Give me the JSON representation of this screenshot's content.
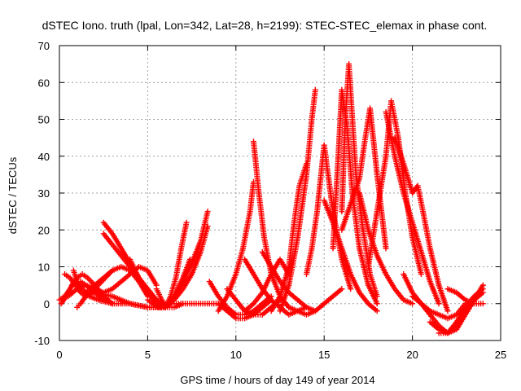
{
  "chart_data": {
    "type": "scatter",
    "title": "dSTEC Iono. truth (lpal, Lon=342, Lat=28, h=2199): STEC-STEC_elemax in phase cont.",
    "xlabel": "GPS time / hours of day 149 of year 2014",
    "ylabel": "dSTEC  / TECUs",
    "xlim": [
      0,
      25
    ],
    "ylim": [
      -10,
      70
    ],
    "xticks": [
      0,
      5,
      10,
      15,
      20,
      25
    ],
    "yticks": [
      -10,
      0,
      10,
      20,
      30,
      40,
      50,
      60,
      70
    ],
    "grid": true,
    "marker": "plus",
    "color": "#ff0000",
    "series": [
      {
        "x": [
          0.0,
          0.3,
          0.6,
          0.9,
          1.2,
          1.5,
          2.0,
          2.5,
          3.0
        ],
        "y": [
          1,
          2,
          4,
          6,
          6,
          5,
          3,
          1,
          0
        ]
      },
      {
        "x": [
          0.1,
          0.4,
          0.7,
          1.0,
          1.3,
          1.6,
          2.0,
          2.5,
          3.0
        ],
        "y": [
          0,
          2,
          5,
          7,
          8,
          7,
          5,
          2,
          0
        ]
      },
      {
        "x": [
          0.3,
          0.6,
          0.9,
          1.2,
          1.5,
          1.8,
          2.2,
          2.6,
          3.0
        ],
        "y": [
          8,
          7,
          5,
          3,
          2,
          3,
          5,
          7,
          9
        ]
      },
      {
        "x": [
          0.8,
          1.0,
          1.3,
          1.7,
          2.2,
          3.0,
          4.0,
          5.0,
          6.0
        ],
        "y": [
          9,
          6,
          4,
          2,
          1,
          0,
          0,
          -1,
          -1
        ]
      },
      {
        "x": [
          1.0,
          1.2,
          1.5,
          2.0,
          3.0,
          4.0,
          5.0,
          6.0
        ],
        "y": [
          -1,
          0,
          2,
          3,
          2,
          0,
          -1,
          -1
        ]
      },
      {
        "x": [
          0.5,
          1.0,
          1.5,
          2.0,
          2.5,
          3.0,
          3.5,
          4.0,
          4.5,
          5.0,
          5.5
        ],
        "y": [
          2,
          4,
          5,
          4,
          3,
          4,
          6,
          8,
          10,
          9,
          5
        ]
      },
      {
        "x": [
          2.5,
          3.0,
          3.5,
          4.0,
          4.5,
          5.0,
          5.5,
          6.0
        ],
        "y": [
          22,
          19,
          15,
          11,
          7,
          3,
          0,
          -1
        ]
      },
      {
        "x": [
          2.5,
          3.0,
          3.5,
          4.0,
          4.5,
          5.0,
          5.5,
          6.0
        ],
        "y": [
          19,
          16,
          13,
          10,
          7,
          4,
          1,
          -1
        ]
      },
      {
        "x": [
          1.5,
          2.0,
          2.5,
          3.0,
          3.5,
          4.0,
          4.5,
          5.0
        ],
        "y": [
          3,
          5,
          7,
          9,
          10,
          9,
          6,
          2
        ]
      },
      {
        "x": [
          4.0,
          4.3,
          4.6,
          5.0,
          5.5,
          6.0,
          6.5,
          7.0
        ],
        "y": [
          12,
          9,
          6,
          3,
          1,
          0,
          0,
          0
        ]
      },
      {
        "x": [
          5.0,
          5.3,
          5.6,
          6.0,
          6.3,
          6.6,
          6.9,
          7.2
        ],
        "y": [
          1,
          0,
          -1,
          -1,
          2,
          7,
          15,
          22
        ]
      },
      {
        "x": [
          5.5,
          5.8,
          6.0,
          6.3,
          6.6,
          7.0,
          7.4
        ],
        "y": [
          4,
          1,
          -1,
          0,
          3,
          7,
          12
        ]
      },
      {
        "x": [
          6.0,
          6.5,
          7.0,
          7.5,
          8.0,
          8.4
        ],
        "y": [
          -1,
          2,
          6,
          11,
          17,
          25
        ]
      },
      {
        "x": [
          6.0,
          6.5,
          7.0,
          7.5,
          8.0,
          8.4
        ],
        "y": [
          -1,
          1,
          4,
          8,
          14,
          21
        ]
      },
      {
        "x": [
          6.0,
          6.5,
          7.0,
          7.5,
          8.0,
          8.5,
          9.0
        ],
        "y": [
          -1,
          -1,
          0,
          0,
          0,
          0,
          0
        ]
      },
      {
        "x": [
          8.5,
          9.0,
          9.5,
          10.0,
          10.5,
          11.0,
          11.5,
          12.0
        ],
        "y": [
          6,
          2,
          -1,
          -3,
          -3,
          -2,
          0,
          2
        ]
      },
      {
        "x": [
          9.0,
          9.5,
          10.0,
          10.5,
          11.0,
          11.5,
          12.0
        ],
        "y": [
          0,
          -2,
          -4,
          -4,
          -3,
          -1,
          1
        ]
      },
      {
        "x": [
          9.5,
          10.0,
          10.5,
          11.0,
          11.5,
          12.0,
          12.5
        ],
        "y": [
          4,
          1,
          -2,
          -3,
          -3,
          -1,
          1
        ]
      },
      {
        "x": [
          9.0,
          9.5,
          10.0,
          10.4,
          10.8,
          11.0
        ],
        "y": [
          -2,
          2,
          8,
          15,
          25,
          33
        ]
      },
      {
        "x": [
          10.5,
          11.0,
          11.5,
          12.0,
          12.5,
          13.0,
          13.5,
          14.0
        ],
        "y": [
          12,
          8,
          4,
          1,
          -1,
          -3,
          -2,
          -1
        ]
      },
      {
        "x": [
          10.5,
          11.0,
          11.5,
          12.0,
          12.5,
          13.0
        ],
        "y": [
          -2,
          0,
          3,
          8,
          12,
          8
        ]
      },
      {
        "x": [
          11.0,
          11.3,
          11.6,
          12.0,
          12.5,
          13.0
        ],
        "y": [
          44,
          30,
          18,
          8,
          2,
          -1
        ]
      },
      {
        "x": [
          11.5,
          12.0,
          12.5,
          13.0,
          13.5,
          14.0,
          14.5
        ],
        "y": [
          14,
          10,
          6,
          3,
          1,
          -1,
          -2
        ]
      },
      {
        "x": [
          12.0,
          12.5,
          13.0,
          13.3,
          13.6,
          14.0
        ],
        "y": [
          -2,
          2,
          10,
          22,
          32,
          38
        ]
      },
      {
        "x": [
          12.5,
          13.0,
          13.5,
          14.0,
          14.3,
          14.5
        ],
        "y": [
          -2,
          5,
          18,
          35,
          50,
          58
        ]
      },
      {
        "x": [
          13.0,
          13.5,
          14.0,
          14.5,
          15.0,
          15.5,
          16.0
        ],
        "y": [
          -1,
          -2,
          -3,
          -2,
          0,
          2,
          4
        ]
      },
      {
        "x": [
          14.0,
          14.3,
          14.6,
          15.0,
          15.5,
          16.0,
          16.5
        ],
        "y": [
          8,
          15,
          25,
          43,
          25,
          12,
          4
        ]
      },
      {
        "x": [
          15.0,
          15.5,
          16.0,
          16.5,
          17.0,
          17.5,
          18.0
        ],
        "y": [
          28,
          22,
          15,
          8,
          3,
          0,
          -2
        ]
      },
      {
        "x": [
          15.5,
          15.8,
          16.0,
          16.3,
          16.6,
          17.0,
          17.5,
          18.0
        ],
        "y": [
          15,
          40,
          58,
          48,
          30,
          15,
          5,
          0
        ]
      },
      {
        "x": [
          16.0,
          16.2,
          16.4,
          16.6,
          16.8,
          17.2,
          17.6,
          18.0
        ],
        "y": [
          25,
          50,
          65,
          50,
          35,
          20,
          8,
          2
        ]
      },
      {
        "x": [
          16.0,
          16.5,
          17.0,
          17.3,
          17.6,
          18.0,
          18.5
        ],
        "y": [
          20,
          27,
          34,
          44,
          53,
          35,
          15
        ]
      },
      {
        "x": [
          17.0,
          17.5,
          18.0,
          18.5,
          19.0,
          19.5,
          20.0
        ],
        "y": [
          30,
          20,
          13,
          8,
          4,
          1,
          0
        ]
      },
      {
        "x": [
          17.5,
          18.0,
          18.5,
          18.8,
          19.2,
          19.6,
          20.0,
          20.5
        ],
        "y": [
          10,
          25,
          40,
          55,
          45,
          30,
          18,
          8
        ]
      },
      {
        "x": [
          18.5,
          19.0,
          19.5,
          20.0,
          20.5,
          21.0,
          21.5
        ],
        "y": [
          52,
          40,
          30,
          22,
          14,
          6,
          0
        ]
      },
      {
        "x": [
          19.0,
          19.5,
          20.0,
          20.3,
          20.6,
          21.0,
          21.5,
          22.0
        ],
        "y": [
          45,
          38,
          30,
          32,
          25,
          15,
          5,
          -2
        ]
      },
      {
        "x": [
          19.5,
          20.0,
          20.5,
          21.0,
          21.5,
          22.0,
          22.5,
          23.0
        ],
        "y": [
          8,
          3,
          0,
          -2,
          -3,
          -4,
          -3,
          0
        ]
      },
      {
        "x": [
          20.0,
          20.5,
          21.0,
          21.5,
          22.0,
          22.5,
          23.0,
          23.5,
          24.0
        ],
        "y": [
          2,
          0,
          -3,
          -6,
          -8,
          -7,
          -3,
          1,
          5
        ]
      },
      {
        "x": [
          21.0,
          21.5,
          22.0,
          22.5,
          23.0,
          23.5,
          24.0
        ],
        "y": [
          -5,
          -7,
          -8,
          -6,
          -2,
          1,
          3
        ]
      },
      {
        "x": [
          21.5,
          22.0,
          22.5,
          23.0,
          23.5,
          24.0
        ],
        "y": [
          -8,
          -8,
          -5,
          -1,
          2,
          4
        ]
      },
      {
        "x": [
          22.0,
          22.5,
          23.0,
          23.5,
          24.0
        ],
        "y": [
          4,
          3,
          1,
          0,
          0
        ]
      }
    ]
  }
}
